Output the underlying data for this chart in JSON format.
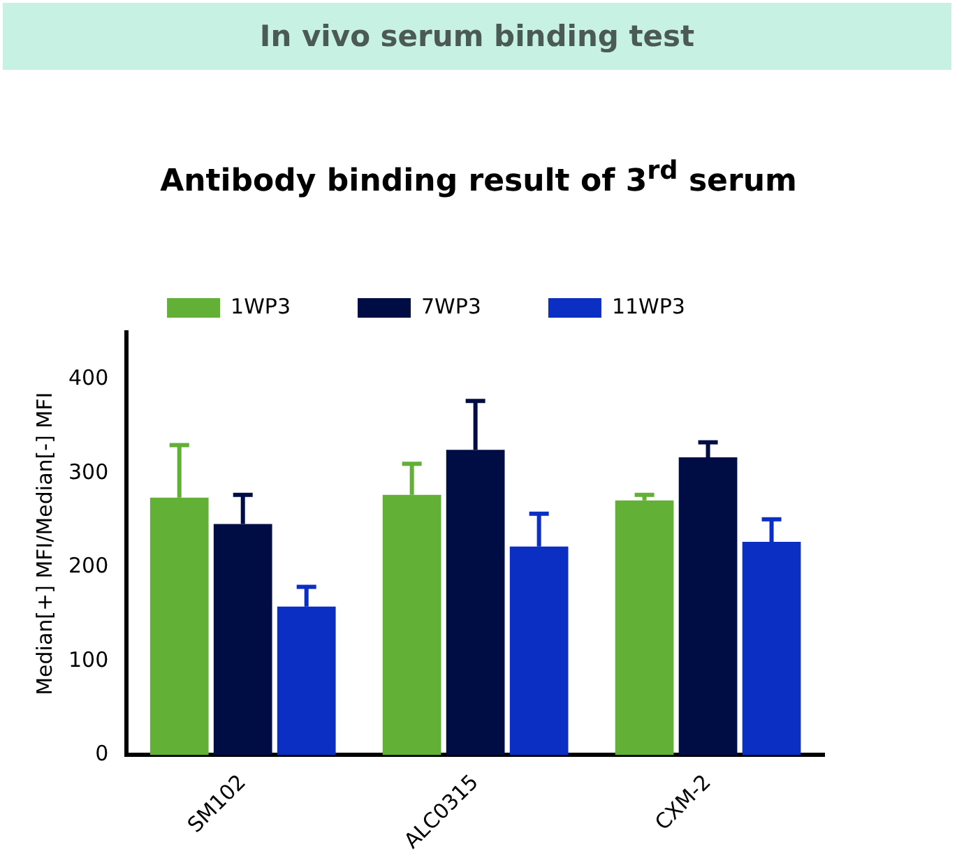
{
  "chart_data": {
    "type": "bar",
    "title": "In vivo serum binding test",
    "subtitle": "Antibody binding result of 3$^{rd}$ serum",
    "ylabel": "Median[+] MFI/Median[-] MFI",
    "categories": [
      "SM102",
      "ALC0315",
      "CXM-2"
    ],
    "series": [
      {
        "name": "1WP3",
        "color": "#62b036",
        "values": [
          274,
          277,
          271
        ],
        "errors": [
          [
            274,
            330
          ],
          [
            277,
            310
          ],
          [
            271,
            277
          ]
        ]
      },
      {
        "name": "7WP3",
        "color": "#000d45",
        "values": [
          246,
          325,
          317
        ],
        "errors": [
          [
            246,
            277
          ],
          [
            325,
            377
          ],
          [
            317,
            333
          ]
        ]
      },
      {
        "name": "11WP3",
        "color": "#0a2fc2",
        "values": [
          158,
          222,
          227
        ],
        "errors": [
          [
            158,
            179
          ],
          [
            222,
            257
          ],
          [
            227,
            251
          ]
        ]
      }
    ],
    "ylim": [
      0,
      450
    ],
    "yticks": [
      0,
      100,
      200,
      300,
      400
    ],
    "grid": false,
    "legend": "top"
  }
}
